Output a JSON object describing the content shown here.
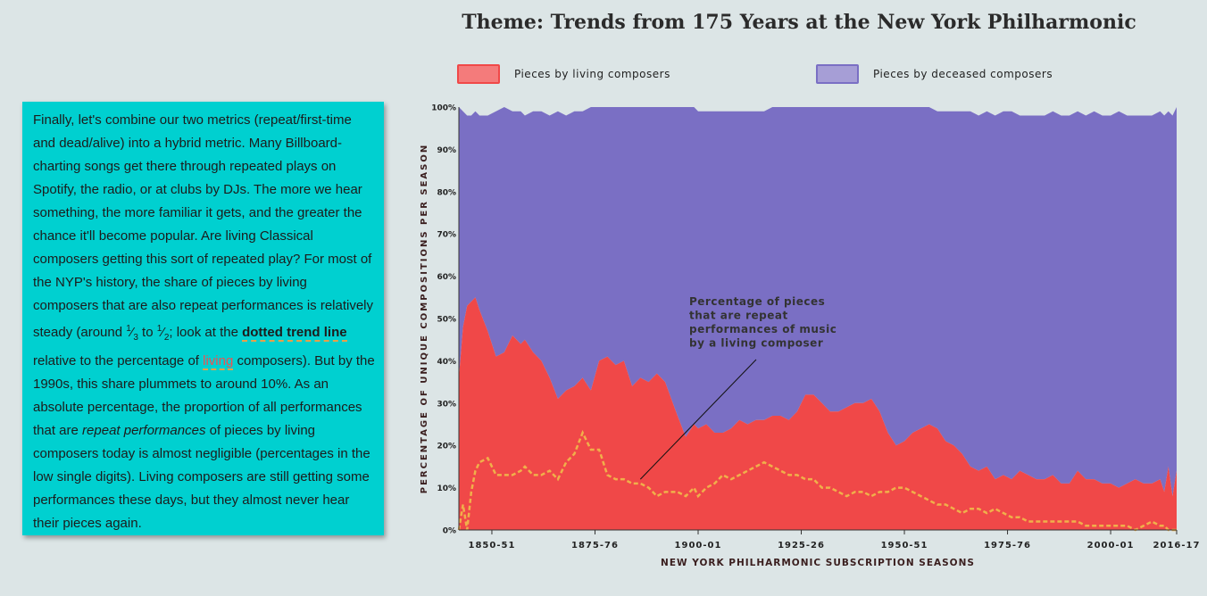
{
  "title": "Theme: Trends from 175 Years at the New York Philharmonic",
  "legend": [
    {
      "label": "Pieces by living composers",
      "color": "#f04848"
    },
    {
      "label": "Pieces by deceased composers",
      "color": "#7a6fc4"
    }
  ],
  "text_card": {
    "p1": "Finally, let's combine our two metrics (repeat/first-time and dead/alive) into a hybrid metric. Many Billboard-charting songs get there through repeated plays on Spotify, the radio, or at clubs by DJs. The more we hear something, the more familiar it gets, and the greater the chance it'll become popular. Are living Classical composers getting this sort of repeated play? For most of the NYP's history, the share of pieces by living composers that are also repeat performances is relatively steady (around ",
    "frac1_num": "1",
    "frac1_den": "3",
    "to": " to ",
    "frac2_num": "1",
    "frac2_den": "2",
    "p2": "; look at the ",
    "dotted_link": "dotted trend line",
    "p3": " relative to the percentage of ",
    "living_link": "living",
    "p4": " composers). But by the 1990s, this share plummets to around 10%. As an absolute percentage, the proportion of all performances that are ",
    "em": "repeat performances",
    "p5": " of pieces by living composers today is almost negligible (percentages in the low single digits). Living composers are still getting some performances these days, but they almost never hear their pieces again."
  },
  "annotation": {
    "lines": [
      "Percentage of pieces",
      "that are repeat",
      "performances of music",
      "by a living composer"
    ]
  },
  "colors": {
    "living": "#f04848",
    "deceased": "#7a6fc4",
    "repeat_line": "#f0b04a",
    "background": "#dce5e6",
    "card": "#00d0d0"
  },
  "chart_data": {
    "type": "area",
    "stacked_percent": true,
    "xlabel": "NEW YORK PHILHARMONIC SUBSCRIPTION SEASONS",
    "ylabel": "PERCENTAGE OF UNIQUE COMPOSITIONS PER SEASON",
    "x_ticks": [
      "1850-51",
      "1875-76",
      "1900-01",
      "1925-26",
      "1950-51",
      "1975-76",
      "2000-01",
      "2016-17"
    ],
    "y_ticks": [
      "0%",
      "10%",
      "20%",
      "30%",
      "40%",
      "50%",
      "60%",
      "70%",
      "80%",
      "90%",
      "100%"
    ],
    "xlim": [
      1842,
      2016
    ],
    "ylim": [
      0,
      100
    ],
    "x": [
      1842,
      1843,
      1844,
      1845,
      1846,
      1847,
      1849,
      1851,
      1853,
      1855,
      1857,
      1858,
      1860,
      1862,
      1864,
      1866,
      1868,
      1870,
      1872,
      1874,
      1876,
      1878,
      1880,
      1882,
      1884,
      1886,
      1888,
      1890,
      1892,
      1895,
      1897,
      1899,
      1900,
      1902,
      1904,
      1906,
      1908,
      1910,
      1912,
      1914,
      1916,
      1918,
      1920,
      1922,
      1924,
      1926,
      1928,
      1930,
      1932,
      1934,
      1936,
      1938,
      1940,
      1942,
      1944,
      1946,
      1948,
      1950,
      1952,
      1954,
      1956,
      1958,
      1960,
      1962,
      1964,
      1966,
      1968,
      1970,
      1972,
      1974,
      1976,
      1978,
      1980,
      1982,
      1984,
      1986,
      1988,
      1990,
      1992,
      1994,
      1996,
      1998,
      2000,
      2002,
      2004,
      2006,
      2008,
      2010,
      2012,
      2013,
      2014,
      2015,
      2016
    ],
    "series": [
      {
        "name": "Pieces by living composers",
        "values": [
          36,
          48,
          53,
          54,
          55,
          52,
          47,
          41,
          42,
          46,
          44,
          45,
          42,
          40,
          36,
          31,
          33,
          34,
          36,
          33,
          40,
          41,
          39,
          40,
          34,
          36,
          35,
          37,
          35,
          27,
          22,
          25,
          24,
          25,
          23,
          23,
          24,
          26,
          25,
          26,
          26,
          27,
          27,
          26,
          28,
          32,
          32,
          30,
          28,
          28,
          29,
          30,
          30,
          31,
          28,
          23,
          20,
          21,
          23,
          24,
          25,
          24,
          21,
          20,
          18,
          15,
          14,
          15,
          12,
          13,
          12,
          14,
          13,
          12,
          12,
          13,
          11,
          11,
          14,
          12,
          12,
          11,
          11,
          10,
          11,
          12,
          11,
          11,
          12,
          9,
          15,
          8,
          14
        ]
      },
      {
        "name": "Pieces by deceased composers",
        "values": [
          64,
          52,
          47,
          46,
          45,
          48,
          53,
          59,
          58,
          54,
          56,
          55,
          58,
          60,
          64,
          69,
          67,
          66,
          64,
          67,
          60,
          59,
          61,
          60,
          66,
          64,
          65,
          63,
          65,
          73,
          78,
          75,
          76,
          75,
          77,
          77,
          76,
          74,
          75,
          74,
          74,
          73,
          73,
          74,
          72,
          68,
          68,
          70,
          72,
          72,
          71,
          70,
          70,
          69,
          72,
          77,
          80,
          79,
          77,
          76,
          75,
          76,
          79,
          80,
          82,
          85,
          86,
          85,
          88,
          87,
          88,
          86,
          87,
          88,
          88,
          87,
          89,
          89,
          86,
          88,
          88,
          89,
          89,
          90,
          89,
          88,
          89,
          89,
          88,
          91,
          85,
          92,
          86
        ]
      }
    ],
    "total_top": [
      100,
      99,
      98,
      98,
      99,
      98,
      98,
      99,
      100,
      99,
      99,
      98,
      99,
      99,
      98,
      99,
      98,
      99,
      99,
      100,
      100,
      100,
      100,
      100,
      100,
      100,
      100,
      100,
      100,
      100,
      100,
      100,
      99,
      99,
      99,
      99,
      99,
      99,
      99,
      99,
      99,
      100,
      100,
      100,
      100,
      100,
      100,
      100,
      100,
      100,
      100,
      100,
      100,
      100,
      100,
      100,
      100,
      100,
      100,
      100,
      100,
      99,
      99,
      99,
      99,
      99,
      98,
      99,
      98,
      99,
      99,
      98,
      98,
      98,
      98,
      99,
      98,
      98,
      99,
      98,
      99,
      98,
      98,
      99,
      98,
      98,
      98,
      98,
      99,
      98,
      99,
      98,
      100
    ],
    "repeat_line": {
      "name": "Percentage of pieces that are repeat performances of music by a living composer",
      "values": [
        0,
        6,
        0,
        9,
        14,
        16,
        17,
        13,
        13,
        13,
        14,
        15,
        13,
        13,
        14,
        12,
        16,
        18,
        23,
        19,
        19,
        13,
        12,
        12,
        11,
        11,
        10,
        8,
        9,
        9,
        8,
        10,
        8,
        10,
        11,
        13,
        12,
        13,
        14,
        15,
        16,
        15,
        14,
        13,
        13,
        12,
        12,
        10,
        10,
        9,
        8,
        9,
        9,
        8,
        9,
        9,
        10,
        10,
        9,
        8,
        7,
        6,
        6,
        5,
        4,
        5,
        5,
        4,
        5,
        4,
        3,
        3,
        2,
        2,
        2,
        2,
        2,
        2,
        2,
        1,
        1,
        1,
        1,
        1,
        1,
        0,
        1,
        2,
        1,
        1,
        0,
        0,
        0
      ]
    }
  }
}
